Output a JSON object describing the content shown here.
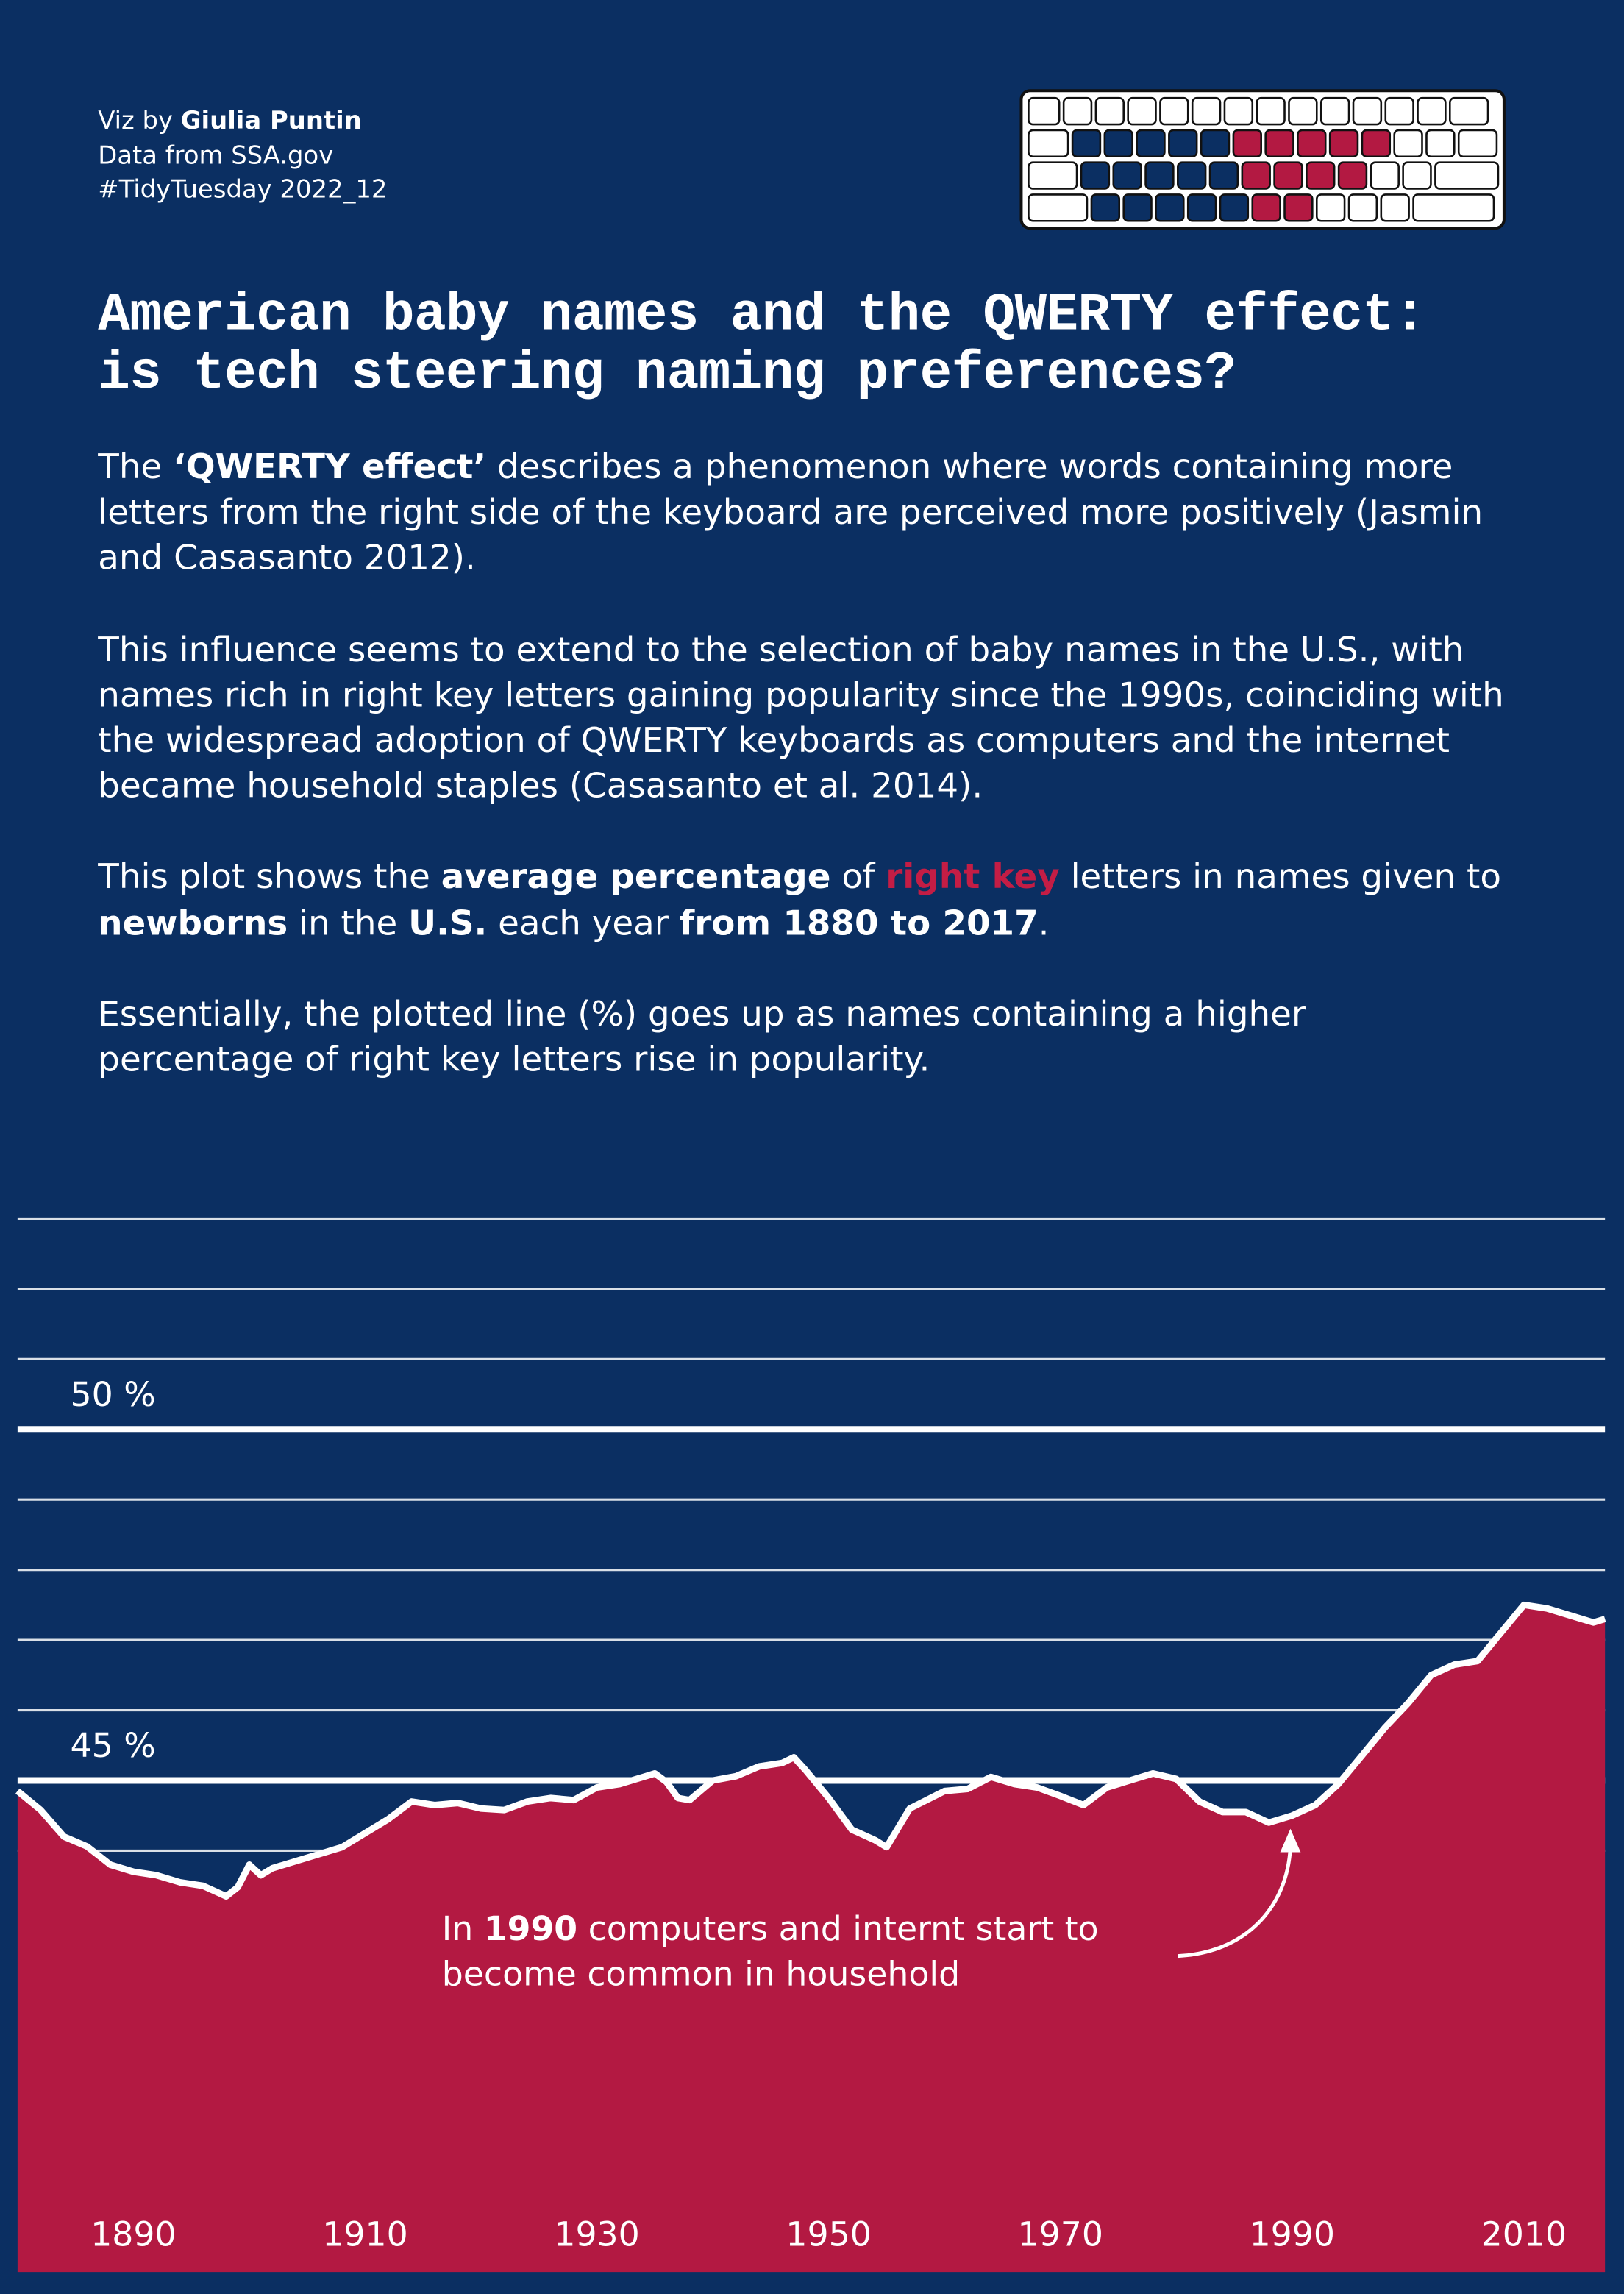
{
  "credits": {
    "viz_prefix": "Viz by ",
    "author": "Giulia Puntin",
    "source": "Data from SSA.gov",
    "tag": "#TidyTuesday 2022_12"
  },
  "intro": [
    [
      "The ",
      "‘QWERTY effect’",
      " describes a phenomenon where words containing more letters from the right side of the keyboard are perceived more positively (Jasmin and Casasanto 2012)."
    ],
    [
      "This influence seems to extend to the selection of baby names in the U.S., with names rich in right key letters gaining popularity since the 1990s, coinciding with the widespread adoption of QWERTY keyboards as computers and the internet became household staples (Casasanto et al. 2014)."
    ],
    [
      "This plot shows the ",
      "average percentage",
      " of ",
      "right key",
      " letters in names given to ",
      "newborns",
      " in the ",
      "U.S.",
      " each year ",
      "from 1880 to 2017",
      "."
    ],
    [
      "Essentially, the plotted line (%) goes up as names containing a higher percentage of right key letters rise in popularity."
    ]
  ],
  "chart_data": {
    "type": "area",
    "title": "American baby names and the QWERTY effect: is tech steering naming preferences?",
    "x": [
      1880,
      1882,
      1884,
      1886,
      1888,
      1890,
      1892,
      1894,
      1896,
      1898,
      1899,
      1900,
      1901,
      1902,
      1904,
      1906,
      1908,
      1910,
      1912,
      1914,
      1916,
      1918,
      1920,
      1922,
      1924,
      1926,
      1928,
      1930,
      1932,
      1934,
      1935,
      1936,
      1937,
      1938,
      1940,
      1942,
      1944,
      1946,
      1947,
      1948,
      1950,
      1952,
      1954,
      1955,
      1957,
      1960,
      1962,
      1964,
      1966,
      1968,
      1970,
      1972,
      1974,
      1976,
      1978,
      1980,
      1982,
      1984,
      1986,
      1988,
      1990,
      1992,
      1994,
      1996,
      1998,
      2000,
      2002,
      2004,
      2006,
      2008,
      2010,
      2012,
      2014,
      2016,
      2017
    ],
    "values": [
      44.85,
      44.58,
      44.2,
      44.06,
      43.8,
      43.7,
      43.65,
      43.55,
      43.5,
      43.35,
      43.48,
      43.8,
      43.65,
      43.75,
      43.85,
      43.95,
      44.05,
      44.25,
      44.45,
      44.7,
      44.65,
      44.68,
      44.6,
      44.58,
      44.7,
      44.75,
      44.72,
      44.9,
      44.95,
      45.05,
      45.1,
      44.98,
      44.75,
      44.72,
      45.0,
      45.06,
      45.2,
      45.25,
      45.33,
      45.15,
      44.75,
      44.3,
      44.15,
      44.05,
      44.6,
      44.85,
      44.88,
      45.05,
      44.95,
      44.9,
      44.78,
      44.65,
      44.9,
      45.0,
      45.1,
      45.02,
      44.7,
      44.55,
      44.55,
      44.4,
      44.5,
      44.65,
      44.95,
      45.35,
      45.75,
      46.1,
      46.5,
      46.65,
      46.7,
      47.1,
      47.5,
      47.45,
      47.35,
      47.25,
      47.3
    ],
    "color": "#b31942",
    "line_color": "#ffffff",
    "xlim": [
      1880,
      2017
    ],
    "xticks": [
      1890,
      1910,
      1930,
      1950,
      1970,
      1990,
      2010
    ],
    "ylim": [
      38,
      53
    ],
    "yticks": [
      {
        "value": 45,
        "label": "45 %"
      },
      {
        "value": 50,
        "label": "50 %"
      }
    ],
    "minor_yticks": [
      44,
      46,
      47,
      48,
      49,
      51,
      52,
      53
    ],
    "grid": true,
    "annotation": [
      "In ",
      "1990",
      " computers and internt start to",
      "become common in household"
    ]
  }
}
